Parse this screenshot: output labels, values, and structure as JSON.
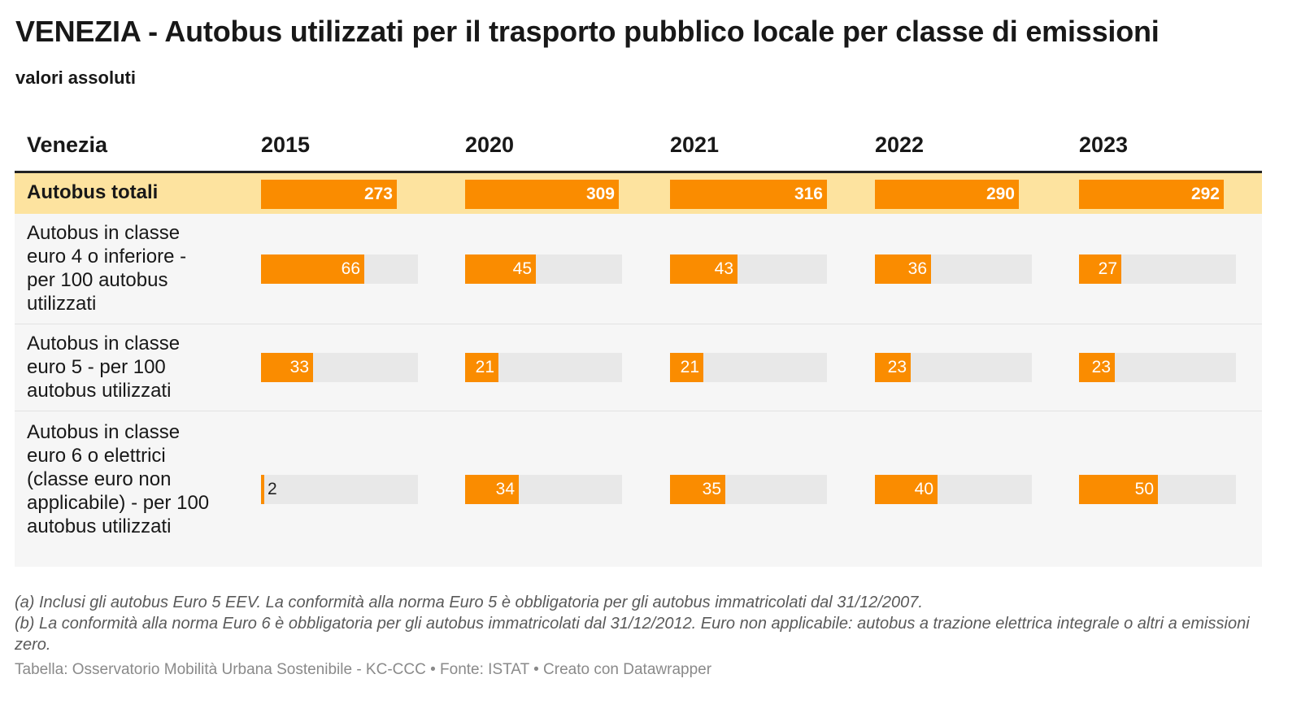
{
  "title": "VENEZIA - Autobus utilizzati per il trasporto pubblico locale per classe di emissioni",
  "subtitle": "valori assoluti",
  "table": {
    "header_label": "Venezia",
    "years": [
      "2015",
      "2020",
      "2021",
      "2022",
      "2023"
    ]
  },
  "chart_data": {
    "type": "table",
    "columns": [
      "2015",
      "2020",
      "2021",
      "2022",
      "2023"
    ],
    "rows": [
      {
        "label": "Autobus totali",
        "values": [
          273,
          309,
          316,
          290,
          292
        ],
        "max": 316
      },
      {
        "label": "Autobus in classe euro 4 o inferiore - per 100 autobus utilizzati",
        "values": [
          66,
          45,
          43,
          36,
          27
        ],
        "max": 100
      },
      {
        "label": "Autobus in classe euro 5 - per 100 autobus utilizzati",
        "values": [
          33,
          21,
          21,
          23,
          23
        ],
        "max": 100
      },
      {
        "label": "Autobus in classe euro 6 o elettrici (classe euro non applicabile) - per 100 autobus utilizzati",
        "values": [
          2,
          34,
          35,
          40,
          50
        ],
        "max": 100
      }
    ]
  },
  "notes": {
    "a": "(a) Inclusi gli autobus Euro 5 EEV. La conformità alla norma Euro 5 è obbligatoria per gli autobus immatricolati dal 31/12/2007.",
    "b": "(b) La conformità alla norma Euro 6 è obbligatoria per gli autobus immatricolati dal 31/12/2012. Euro non applicabile: autobus a trazione elettrica integrale o altri a emissioni zero."
  },
  "footer": "Tabella: Osservatorio Mobilità Urbana Sostenibile - KC-CCC • Fonte: ISTAT • Creato con Datawrapper",
  "colors": {
    "bar": "#fa8c00",
    "track": "#e8e8e8",
    "highlight_row": "#fde39f",
    "row_bg": "#f6f6f6"
  }
}
